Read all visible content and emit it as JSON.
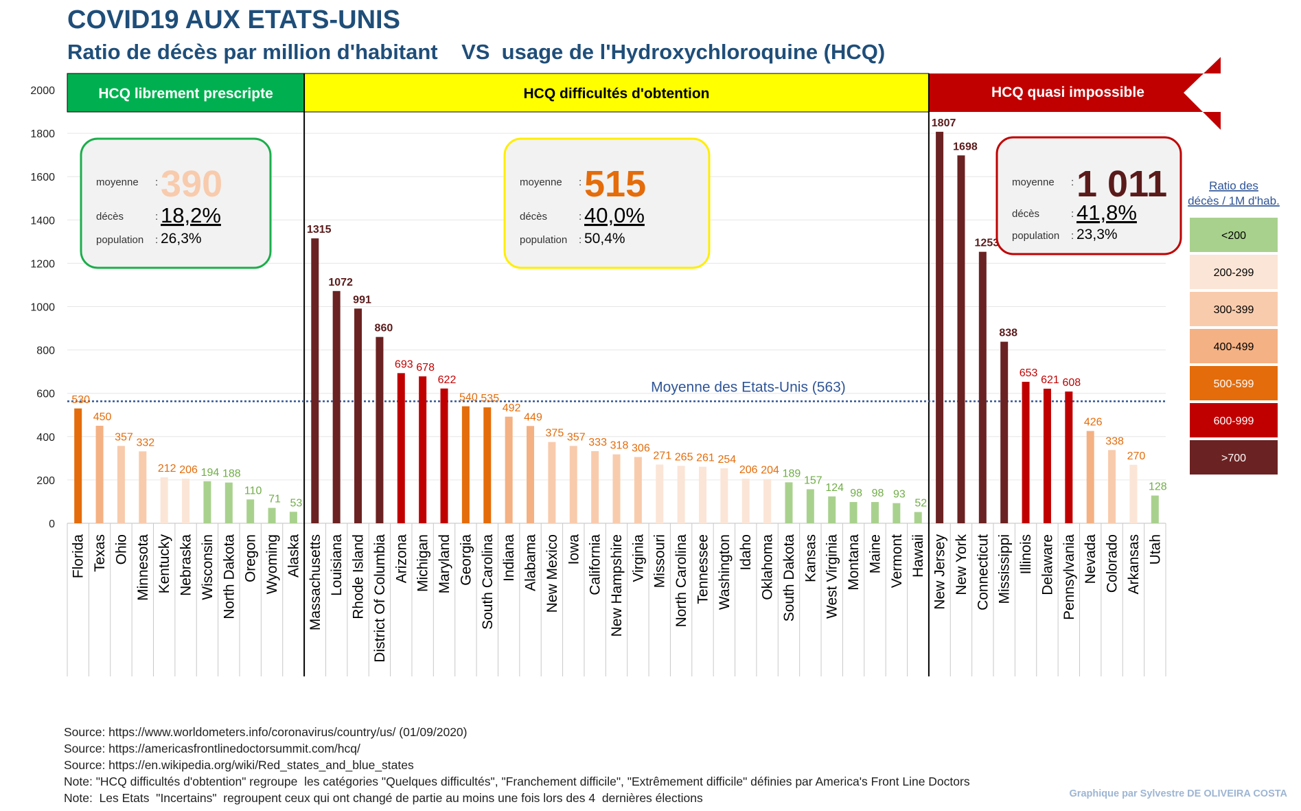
{
  "title": "COVID19 AUX ETATS-UNIS",
  "subtitle": "Ratio de décès par million d'habitant    VS  usage de l'Hydroxychloroquine (HCQ)",
  "chart_data": {
    "type": "bar",
    "ylim": [
      0,
      2000
    ],
    "yticks": [
      0,
      200,
      400,
      600,
      800,
      1000,
      1200,
      1400,
      1600,
      1800,
      2000
    ],
    "grid": true,
    "categories": [
      "Florida",
      "Texas",
      "Ohio",
      "Minnesota",
      "Kentucky",
      "Nebraska",
      "Wisconsin",
      "North Dakota",
      "Oregon",
      "Wyoming",
      "Alaska",
      "Massachusetts",
      "Louisiana",
      "Rhode Island",
      "District Of Columbia",
      "Arizona",
      "Michigan",
      "Maryland",
      "Georgia",
      "South Carolina",
      "Indiana",
      "Alabama",
      "New Mexico",
      "Iowa",
      "California",
      "New Hampshire",
      "Virginia",
      "Missouri",
      "North Carolina",
      "Tennessee",
      "Washington",
      "Idaho",
      "Oklahoma",
      "South Dakota",
      "Kansas",
      "West Virginia",
      "Montana",
      "Maine",
      "Vermont",
      "Hawaii",
      "New Jersey",
      "New York",
      "Connecticut",
      "Mississippi",
      "Illinois",
      "Delaware",
      "Pennsylvania",
      "Nevada",
      "Colorado",
      "Arkansas",
      "Utah"
    ],
    "values": [
      530,
      450,
      357,
      332,
      212,
      206,
      194,
      188,
      110,
      71,
      53,
      1315,
      1072,
      991,
      860,
      693,
      678,
      622,
      540,
      535,
      492,
      449,
      375,
      357,
      333,
      318,
      306,
      271,
      265,
      261,
      254,
      206,
      204,
      189,
      157,
      124,
      98,
      98,
      93,
      52,
      1807,
      1698,
      1253,
      838,
      653,
      621,
      608,
      426,
      338,
      270,
      128
    ],
    "mean_line": {
      "value": 563,
      "label": "Moyenne des Etats-Unis (563)",
      "color": "#2f5597"
    },
    "groups": [
      {
        "label": "HCQ librement prescripte",
        "start": 0,
        "end": 10,
        "color": "#00b050",
        "text_color": "#ffffff",
        "stats": {
          "mean_label": "moyenne",
          "mean": "390",
          "mean_color": "#f8cbad",
          "deaths_label": "décès",
          "deaths": "18,2%",
          "pop_label": "population",
          "pop": "26,3%",
          "border": "#1aae4a"
        }
      },
      {
        "label": "HCQ difficultés d'obtention",
        "start": 11,
        "end": 39,
        "color": "#ffff00",
        "text_color": "#000000",
        "stats": {
          "mean_label": "moyenne",
          "mean": "515",
          "mean_color": "#e46c0a",
          "deaths_label": "décès",
          "deaths": "40,0%",
          "pop_label": "population",
          "pop": "50,4%",
          "border": "#ffee00"
        }
      },
      {
        "label": "HCQ quasi impossible",
        "start": 40,
        "end": 50,
        "color": "#c00000",
        "text_color": "#ffffff",
        "stats": {
          "mean_label": "moyenne",
          "mean": "1 011",
          "mean_color": "#5a1a1a",
          "deaths_label": "décès",
          "deaths": "41,8%",
          "pop_label": "population",
          "pop": "23,3%",
          "border": "#c00000"
        }
      }
    ],
    "legend": {
      "title_line1": "Ratio des",
      "title_line2": "décès / 1M d'hab.",
      "title_color": "#2f5597",
      "items": [
        {
          "label": "<200",
          "color": "#a9d18e",
          "text_color": "#000000"
        },
        {
          "label": "200-299",
          "color": "#fbe5d6",
          "text_color": "#000000"
        },
        {
          "label": "300-399",
          "color": "#f8cbad",
          "text_color": "#000000"
        },
        {
          "label": "400-499",
          "color": "#f4b183",
          "text_color": "#000000"
        },
        {
          "label": "500-599",
          "color": "#e46c0a",
          "text_color": "#ffffff"
        },
        {
          "label": "600-999",
          "color": "#c00000",
          "text_color": "#ffffff"
        },
        {
          "label": ">700",
          "color": "#6b2222",
          "text_color": "#ffffff"
        }
      ]
    }
  },
  "sources": [
    "Source: https://www.worldometers.info/coronavirus/country/us/ (01/09/2020)",
    "Source: https://americasfrontlinedoctorsummit.com/hcq/",
    "Source: https://en.wikipedia.org/wiki/Red_states_and_blue_states",
    "Note: \"HCQ difficultés d'obtention\" regroupe  les catégories \"Quelques difficultés\", \"Franchement difficile\", \"Extrêmement difficile\" définies par America's Front Line Doctors",
    "Note:  Les Etats  \"Incertains\"  regroupent ceux qui ont changé de partie au moins une fois lors des 4  dernières élections"
  ],
  "credit": "Graphique par Sylvestre DE OLIVEIRA COSTA"
}
